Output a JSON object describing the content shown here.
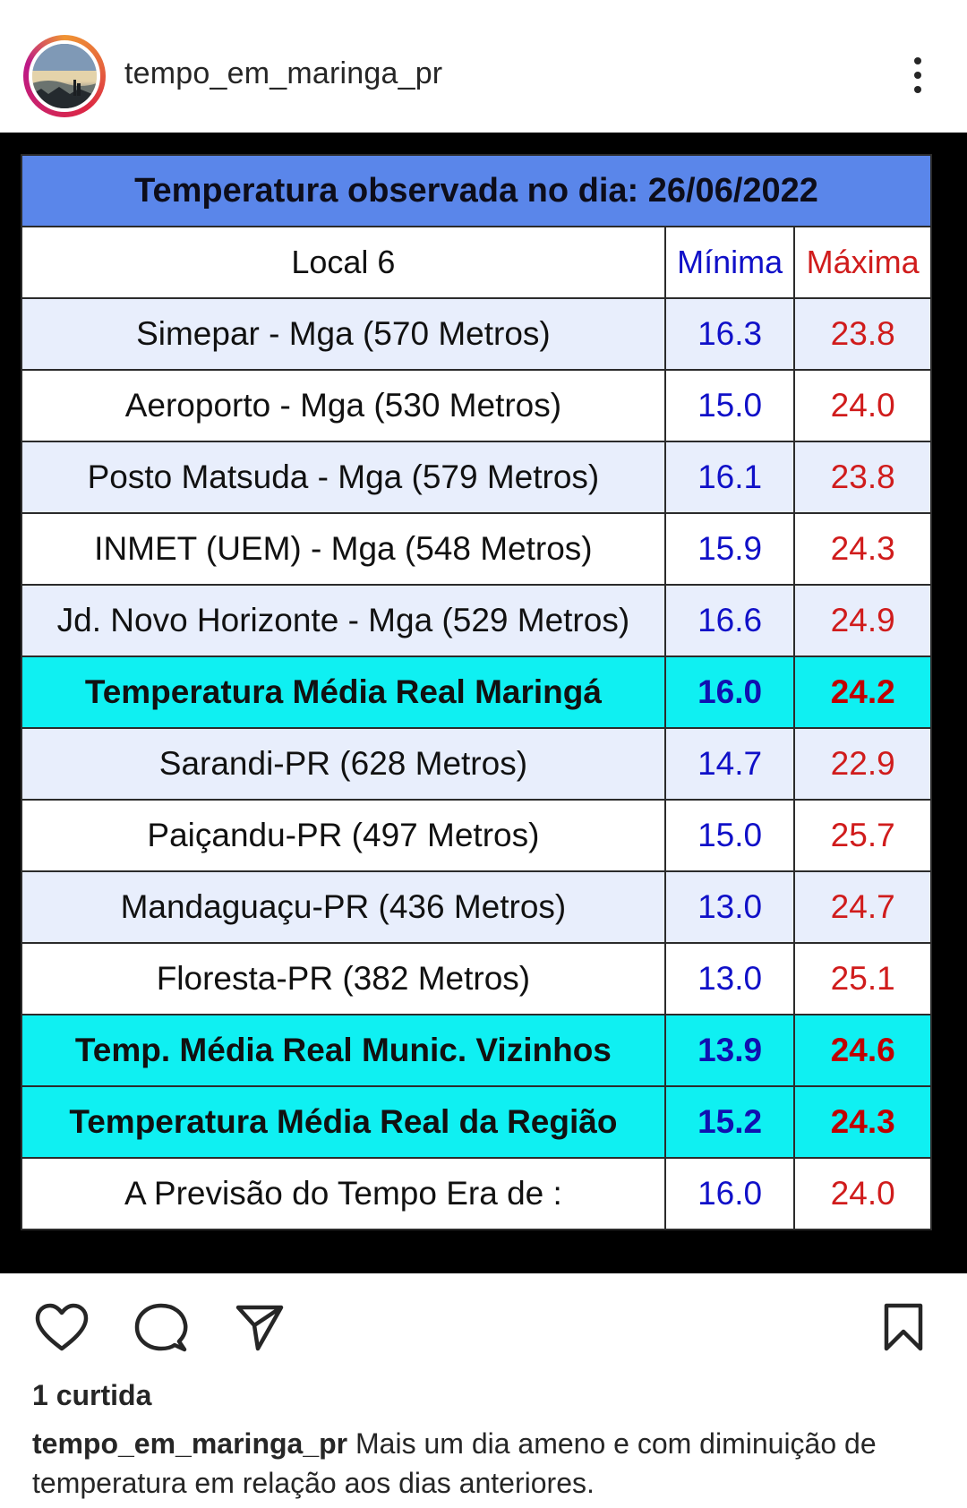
{
  "post": {
    "username": "tempo_em_maringa_pr",
    "likes_text": "1 curtida",
    "caption_user": "tempo_em_maringa_pr",
    "caption_text": " Mais um dia ameno e com diminuição de temperatura em relação aos dias anteriores."
  },
  "icons": {
    "more": "more-vertical-icon",
    "like": "heart-icon",
    "comment": "comment-icon",
    "share": "send-icon",
    "save": "bookmark-icon"
  },
  "table": {
    "title": "Temperatura observada no dia: 26/06/2022",
    "header": {
      "local": "Local 6",
      "min": "Mínima",
      "max": "Máxima"
    },
    "rows": [
      {
        "local": "Simepar - Mga  (570 Metros)",
        "min": "16.3",
        "max": "23.8",
        "style": "light"
      },
      {
        "local": "Aeroporto - Mga (530 Metros)",
        "min": "15.0",
        "max": "24.0",
        "style": "white"
      },
      {
        "local": "Posto Matsuda - Mga (579 Metros)",
        "min": "16.1",
        "max": "23.8",
        "style": "light"
      },
      {
        "local": "INMET (UEM) - Mga  (548 Metros)",
        "min": "15.9",
        "max": "24.3",
        "style": "white"
      },
      {
        "local": "Jd. Novo Horizonte - Mga (529 Metros)",
        "min": "16.6",
        "max": "24.9",
        "style": "light"
      },
      {
        "local": "Temperatura Média Real Maringá",
        "min": "16.0",
        "max": "24.2",
        "style": "cyan"
      },
      {
        "local": "Sarandi-PR  (628 Metros)",
        "min": "14.7",
        "max": "22.9",
        "style": "light"
      },
      {
        "local": "Paiçandu-PR (497 Metros)",
        "min": "15.0",
        "max": "25.7",
        "style": "white"
      },
      {
        "local": "Mandaguaçu-PR (436 Metros)",
        "min": "13.0",
        "max": "24.7",
        "style": "light"
      },
      {
        "local": "Floresta-PR (382 Metros)",
        "min": "13.0",
        "max": "25.1",
        "style": "white"
      },
      {
        "local": "Temp. Média Real Munic. Vizinhos",
        "min": "13.9",
        "max": "24.6",
        "style": "cyan"
      },
      {
        "local": "Temperatura Média Real da Região",
        "min": "15.2",
        "max": "24.3",
        "style": "cyan"
      },
      {
        "local": "A Previsão do Tempo Era de :",
        "min": "16.0",
        "max": "24.0",
        "style": "white"
      }
    ]
  },
  "colors": {
    "title_bg": "#5a86ea",
    "highlight_bg": "#0ff0f2",
    "min_color": "#1010c8",
    "max_color": "#d01c1c"
  }
}
